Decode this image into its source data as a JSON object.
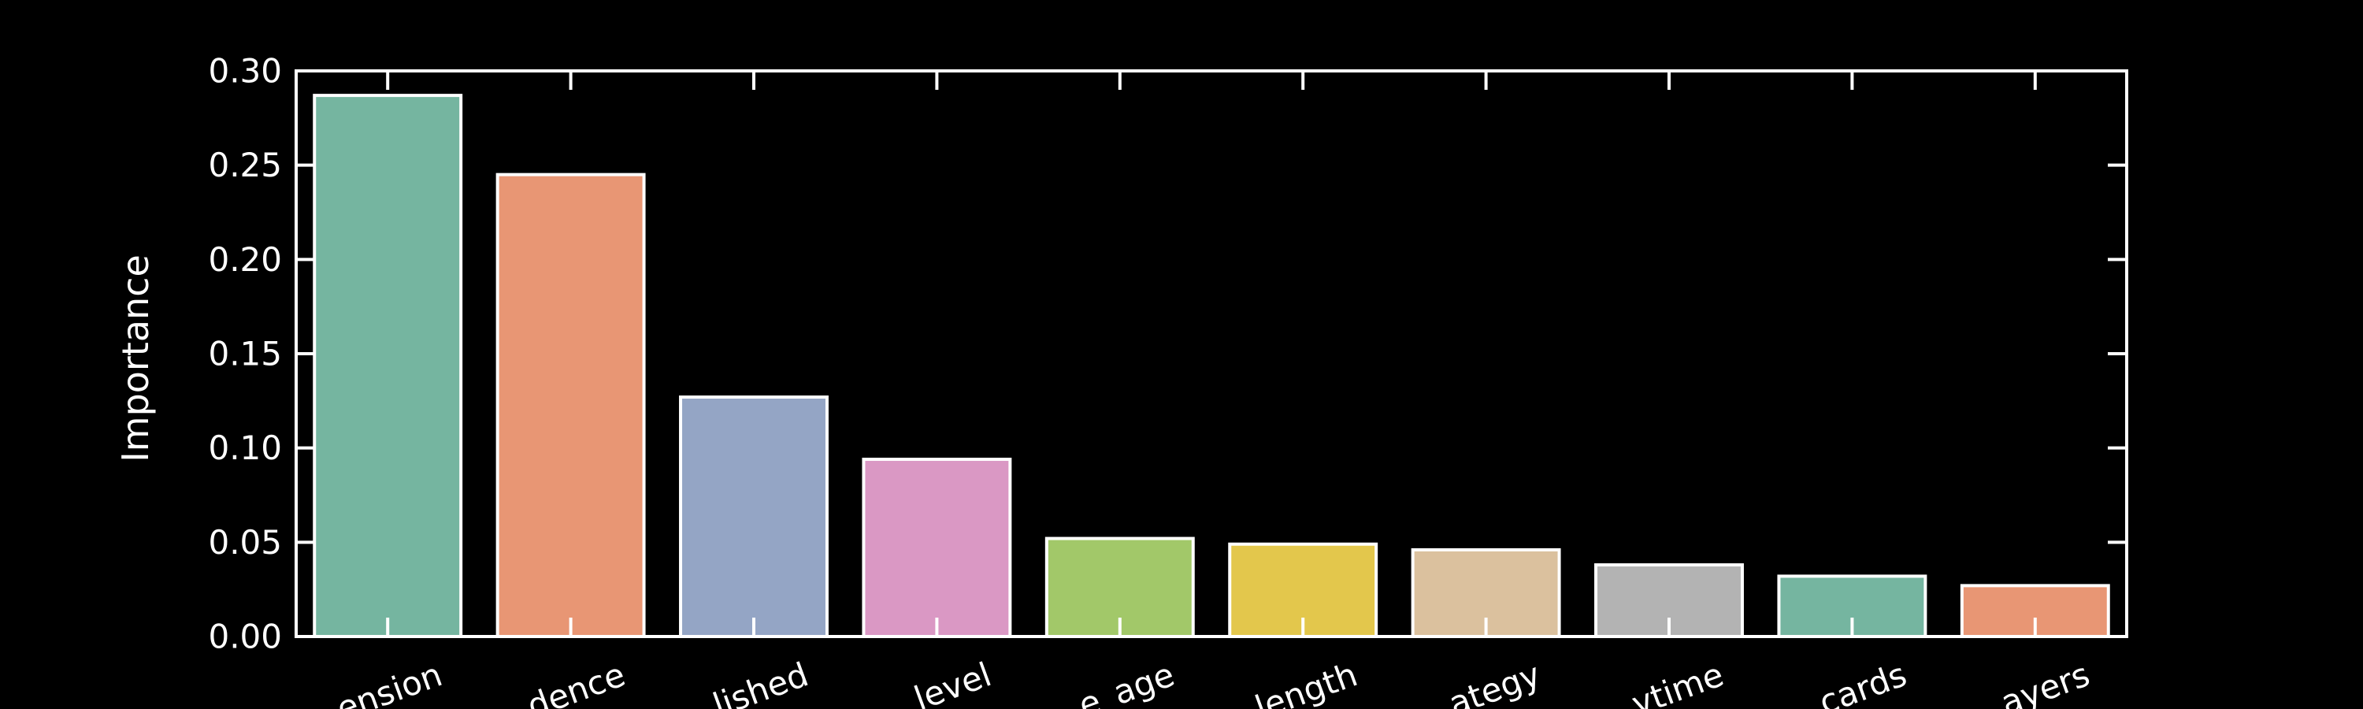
{
  "chart_data": {
    "type": "bar",
    "categories": [
      "ension",
      "dence",
      "lished",
      "level",
      "e_age",
      "length",
      "ategy",
      "ytime",
      "cards",
      "ayers"
    ],
    "values": [
      0.287,
      0.245,
      0.127,
      0.094,
      0.052,
      0.049,
      0.046,
      0.038,
      0.032,
      0.027
    ],
    "colors": [
      "#75b5a0",
      "#e89674",
      "#94a5c5",
      "#da98c4",
      "#a2c869",
      "#e3c74c",
      "#dbc19e",
      "#b3b3b3",
      "#75b5a0",
      "#e89674"
    ],
    "ylabel": "Importance",
    "xlabel": "",
    "title": "",
    "ylim": [
      0,
      0.3
    ],
    "yticks": [
      "0.00",
      "0.05",
      "0.10",
      "0.15",
      "0.20",
      "0.25",
      "0.30"
    ],
    "grid": false,
    "background": "#000000",
    "axis_color": "#ffffff",
    "bar_edge_color": "#ffffff"
  }
}
